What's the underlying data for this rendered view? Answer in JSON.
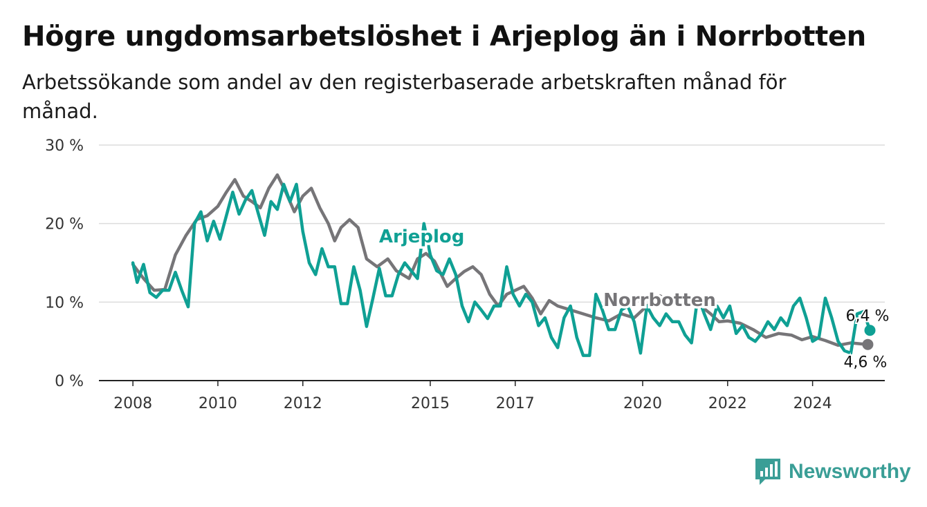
{
  "title": "Högre ungdomsarbetslöshet i Arjeplog än i Norrbotten",
  "subtitle": "Arbetssökande som andel av den registerbaserade arbetskraften månad för månad.",
  "brand": {
    "name": "Newsworthy",
    "icon": "newsworthy-logo-icon",
    "color": "#3a9e96"
  },
  "chart_data": {
    "type": "line",
    "y_ticks": [
      {
        "value": 0,
        "label": "0 %"
      },
      {
        "value": 10,
        "label": "10 %"
      },
      {
        "value": 20,
        "label": "20 %"
      },
      {
        "value": 30,
        "label": "30 %"
      }
    ],
    "x_ticks": [
      {
        "value": 2008.0,
        "label": "2008"
      },
      {
        "value": 2010.0,
        "label": "2010"
      },
      {
        "value": 2012.0,
        "label": "2012"
      },
      {
        "value": 2015.0,
        "label": "2015"
      },
      {
        "value": 2017.0,
        "label": "2017"
      },
      {
        "value": 2020.0,
        "label": "2020"
      },
      {
        "value": 2022.0,
        "label": "2022"
      },
      {
        "value": 2024.0,
        "label": "2024"
      }
    ],
    "xlim": [
      2007.2,
      2025.7
    ],
    "ylim": [
      0,
      30
    ],
    "grid": true,
    "series": [
      {
        "name": "Norrbotten",
        "color": "#767578",
        "end_label": "4,6 %",
        "points": [
          [
            2008.0,
            14.8
          ],
          [
            2008.25,
            13.0
          ],
          [
            2008.5,
            11.5
          ],
          [
            2008.75,
            11.6
          ],
          [
            2009.0,
            16.0
          ],
          [
            2009.25,
            18.5
          ],
          [
            2009.5,
            20.5
          ],
          [
            2009.75,
            21.0
          ],
          [
            2010.0,
            22.2
          ],
          [
            2010.2,
            24.0
          ],
          [
            2010.4,
            25.6
          ],
          [
            2010.6,
            23.5
          ],
          [
            2010.8,
            22.8
          ],
          [
            2011.0,
            22.0
          ],
          [
            2011.2,
            24.5
          ],
          [
            2011.4,
            26.2
          ],
          [
            2011.6,
            24.0
          ],
          [
            2011.8,
            21.5
          ],
          [
            2012.0,
            23.5
          ],
          [
            2012.2,
            24.5
          ],
          [
            2012.4,
            22.0
          ],
          [
            2012.6,
            20.0
          ],
          [
            2012.75,
            17.8
          ],
          [
            2012.9,
            19.5
          ],
          [
            2013.1,
            20.5
          ],
          [
            2013.3,
            19.5
          ],
          [
            2013.5,
            15.5
          ],
          [
            2013.75,
            14.5
          ],
          [
            2014.0,
            15.5
          ],
          [
            2014.2,
            14.0
          ],
          [
            2014.5,
            13.0
          ],
          [
            2014.7,
            15.5
          ],
          [
            2014.9,
            16.2
          ],
          [
            2015.1,
            15.2
          ],
          [
            2015.4,
            12.0
          ],
          [
            2015.6,
            13.0
          ],
          [
            2015.8,
            13.9
          ],
          [
            2016.0,
            14.5
          ],
          [
            2016.2,
            13.5
          ],
          [
            2016.4,
            11.0
          ],
          [
            2016.6,
            9.5
          ],
          [
            2016.8,
            11.0
          ],
          [
            2017.0,
            11.5
          ],
          [
            2017.2,
            12.0
          ],
          [
            2017.4,
            10.5
          ],
          [
            2017.6,
            8.5
          ],
          [
            2017.8,
            10.2
          ],
          [
            2018.0,
            9.5
          ],
          [
            2018.3,
            9.0
          ],
          [
            2018.6,
            8.5
          ],
          [
            2018.9,
            8.0
          ],
          [
            2019.2,
            7.6
          ],
          [
            2019.5,
            8.5
          ],
          [
            2019.8,
            8.0
          ],
          [
            2020.1,
            9.5
          ],
          [
            2020.4,
            10.8
          ],
          [
            2020.7,
            10.0
          ],
          [
            2021.0,
            10.5
          ],
          [
            2021.3,
            9.8
          ],
          [
            2021.6,
            8.5
          ],
          [
            2021.8,
            7.5
          ],
          [
            2022.0,
            7.6
          ],
          [
            2022.3,
            7.3
          ],
          [
            2022.6,
            6.5
          ],
          [
            2022.9,
            5.5
          ],
          [
            2023.2,
            6.0
          ],
          [
            2023.5,
            5.8
          ],
          [
            2023.75,
            5.2
          ],
          [
            2024.0,
            5.6
          ],
          [
            2024.3,
            5.1
          ],
          [
            2024.6,
            4.5
          ],
          [
            2024.9,
            4.8
          ],
          [
            2025.1,
            4.7
          ],
          [
            2025.3,
            4.6
          ]
        ]
      },
      {
        "name": "Arjeplog",
        "color": "#0fa094",
        "end_label": "6,4 %",
        "points": [
          [
            2008.0,
            15.0
          ],
          [
            2008.1,
            12.5
          ],
          [
            2008.25,
            14.8
          ],
          [
            2008.4,
            11.2
          ],
          [
            2008.55,
            10.6
          ],
          [
            2008.7,
            11.5
          ],
          [
            2008.85,
            11.5
          ],
          [
            2009.0,
            13.8
          ],
          [
            2009.15,
            11.5
          ],
          [
            2009.3,
            9.4
          ],
          [
            2009.45,
            20.0
          ],
          [
            2009.6,
            21.5
          ],
          [
            2009.75,
            17.8
          ],
          [
            2009.9,
            20.3
          ],
          [
            2010.05,
            18.0
          ],
          [
            2010.2,
            21.0
          ],
          [
            2010.35,
            24.0
          ],
          [
            2010.5,
            21.2
          ],
          [
            2010.65,
            23.0
          ],
          [
            2010.8,
            24.2
          ],
          [
            2010.95,
            21.3
          ],
          [
            2011.1,
            18.5
          ],
          [
            2011.25,
            22.8
          ],
          [
            2011.4,
            21.8
          ],
          [
            2011.55,
            25.0
          ],
          [
            2011.7,
            22.8
          ],
          [
            2011.85,
            25.0
          ],
          [
            2012.0,
            19.0
          ],
          [
            2012.15,
            15.0
          ],
          [
            2012.3,
            13.5
          ],
          [
            2012.45,
            16.8
          ],
          [
            2012.6,
            14.5
          ],
          [
            2012.75,
            14.5
          ],
          [
            2012.9,
            9.8
          ],
          [
            2013.05,
            9.8
          ],
          [
            2013.2,
            14.5
          ],
          [
            2013.35,
            11.5
          ],
          [
            2013.5,
            6.9
          ],
          [
            2013.65,
            10.5
          ],
          [
            2013.8,
            14.3
          ],
          [
            2013.95,
            10.8
          ],
          [
            2014.1,
            10.8
          ],
          [
            2014.25,
            13.5
          ],
          [
            2014.4,
            15.0
          ],
          [
            2014.55,
            14.0
          ],
          [
            2014.7,
            13.0
          ],
          [
            2014.85,
            20.0
          ],
          [
            2015.0,
            16.0
          ],
          [
            2015.15,
            14.0
          ],
          [
            2015.3,
            13.5
          ],
          [
            2015.45,
            15.5
          ],
          [
            2015.6,
            13.5
          ],
          [
            2015.75,
            9.5
          ],
          [
            2015.9,
            7.5
          ],
          [
            2016.05,
            10.0
          ],
          [
            2016.2,
            9.0
          ],
          [
            2016.35,
            7.9
          ],
          [
            2016.5,
            9.5
          ],
          [
            2016.65,
            9.5
          ],
          [
            2016.8,
            14.5
          ],
          [
            2016.95,
            11.0
          ],
          [
            2017.1,
            9.5
          ],
          [
            2017.25,
            11.0
          ],
          [
            2017.4,
            10.0
          ],
          [
            2017.55,
            7.0
          ],
          [
            2017.7,
            8.0
          ],
          [
            2017.85,
            5.5
          ],
          [
            2018.0,
            4.2
          ],
          [
            2018.15,
            8.0
          ],
          [
            2018.3,
            9.5
          ],
          [
            2018.45,
            5.5
          ],
          [
            2018.6,
            3.2
          ],
          [
            2018.75,
            3.2
          ],
          [
            2018.9,
            11.0
          ],
          [
            2019.05,
            9.0
          ],
          [
            2019.2,
            6.5
          ],
          [
            2019.35,
            6.5
          ],
          [
            2019.5,
            9.0
          ],
          [
            2019.65,
            9.5
          ],
          [
            2019.8,
            7.5
          ],
          [
            2019.95,
            3.5
          ],
          [
            2020.1,
            9.5
          ],
          [
            2020.25,
            8.0
          ],
          [
            2020.4,
            7.0
          ],
          [
            2020.55,
            8.5
          ],
          [
            2020.7,
            7.5
          ],
          [
            2020.85,
            7.5
          ],
          [
            2021.0,
            5.8
          ],
          [
            2021.15,
            4.8
          ],
          [
            2021.3,
            10.8
          ],
          [
            2021.45,
            8.5
          ],
          [
            2021.6,
            6.5
          ],
          [
            2021.75,
            9.5
          ],
          [
            2021.9,
            8.0
          ],
          [
            2022.05,
            9.5
          ],
          [
            2022.2,
            6.0
          ],
          [
            2022.35,
            7.0
          ],
          [
            2022.5,
            5.5
          ],
          [
            2022.65,
            5.0
          ],
          [
            2022.8,
            6.0
          ],
          [
            2022.95,
            7.5
          ],
          [
            2023.1,
            6.5
          ],
          [
            2023.25,
            8.0
          ],
          [
            2023.4,
            7.0
          ],
          [
            2023.55,
            9.5
          ],
          [
            2023.7,
            10.5
          ],
          [
            2023.85,
            8.0
          ],
          [
            2024.0,
            5.0
          ],
          [
            2024.15,
            5.5
          ],
          [
            2024.3,
            10.5
          ],
          [
            2024.45,
            8.0
          ],
          [
            2024.6,
            5.0
          ],
          [
            2024.75,
            3.8
          ],
          [
            2024.9,
            3.5
          ],
          [
            2025.05,
            8.5
          ],
          [
            2025.2,
            8.8
          ],
          [
            2025.35,
            6.4
          ]
        ]
      }
    ],
    "inline_labels": [
      {
        "text": "Arjeplog",
        "series": "Arjeplog",
        "x": 2014.8,
        "y": 17.6
      },
      {
        "text": "Norrbotten",
        "series": "Norrbotten",
        "x": 2020.4,
        "y": 9.5
      }
    ]
  }
}
